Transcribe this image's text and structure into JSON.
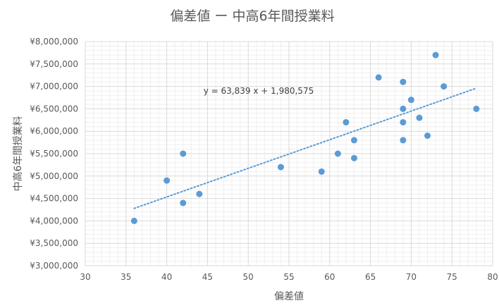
{
  "chart_data": {
    "type": "scatter",
    "title": "偏差値 ー 中高6年間授業料",
    "xlabel": "偏差値",
    "ylabel": "中高6年間授業料",
    "xlim": [
      30,
      80
    ],
    "ylim": [
      3000000,
      8000000
    ],
    "x_ticks": [
      "30",
      "35",
      "40",
      "45",
      "50",
      "55",
      "60",
      "65",
      "70",
      "75",
      "80"
    ],
    "y_ticks": [
      "¥3,000,000",
      "¥3,500,000",
      "¥4,000,000",
      "¥4,500,000",
      "¥5,000,000",
      "¥5,500,000",
      "¥6,000,000",
      "¥6,500,000",
      "¥7,000,000",
      "¥7,500,000",
      "¥8,000,000"
    ],
    "points": [
      {
        "x": 36,
        "y": 4000000
      },
      {
        "x": 40,
        "y": 4900000
      },
      {
        "x": 42,
        "y": 5500000
      },
      {
        "x": 42,
        "y": 4400000
      },
      {
        "x": 44,
        "y": 4600000
      },
      {
        "x": 54,
        "y": 5200000
      },
      {
        "x": 59,
        "y": 5100000
      },
      {
        "x": 61,
        "y": 5500000
      },
      {
        "x": 62,
        "y": 6200000
      },
      {
        "x": 63,
        "y": 5800000
      },
      {
        "x": 63,
        "y": 5400000
      },
      {
        "x": 66,
        "y": 7200000
      },
      {
        "x": 69,
        "y": 7100000
      },
      {
        "x": 69,
        "y": 6500000
      },
      {
        "x": 69,
        "y": 6200000
      },
      {
        "x": 69,
        "y": 5800000
      },
      {
        "x": 70,
        "y": 6700000
      },
      {
        "x": 71,
        "y": 6300000
      },
      {
        "x": 72,
        "y": 5900000
      },
      {
        "x": 73,
        "y": 7700000
      },
      {
        "x": 74,
        "y": 7000000
      },
      {
        "x": 78,
        "y": 6500000
      }
    ],
    "trendline": {
      "type": "linear",
      "slope": 63839,
      "intercept": 1980575,
      "x_start": 36,
      "x_end": 78,
      "equation_label": "y = 63,839 x + 1,980,575"
    },
    "grid": true,
    "legend": "none",
    "colors": {
      "point": "#5b9bd5",
      "trendline": "#5b9bd5",
      "grid_major": "#d9d9d9",
      "grid_minor": "#efefef",
      "text": "#595959"
    }
  }
}
